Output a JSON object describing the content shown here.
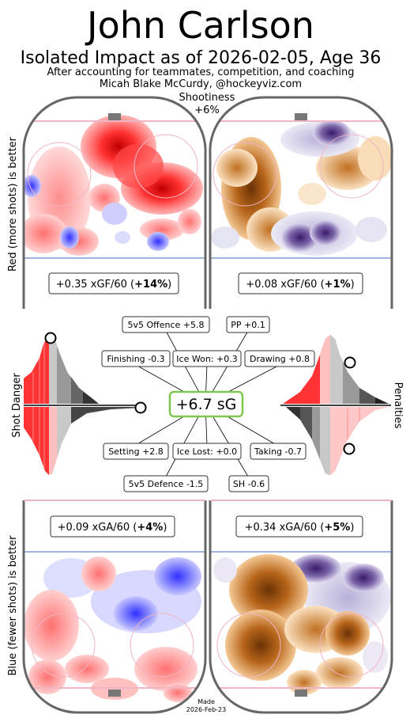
{
  "header": {
    "title": "John Carlson",
    "subtitle": "Isolated Impact as of 2026-02-05, Age 36",
    "line1": "After accounting for teammates, competition, and coaching",
    "line2": "Micah Blake McCurdy, @hockeyviz.com"
  },
  "shootiness": {
    "label": "Shootiness",
    "value": "+6%"
  },
  "side_labels": {
    "top": "Red (more shots) is better",
    "bottom": "Blue (fewer shots) is better",
    "left": "Shot Danger",
    "right": "Penalties"
  },
  "rink_labels": {
    "top_left": {
      "value": "+0.35 xGF/60 (",
      "pct": "+14%",
      "close": ")"
    },
    "top_right": {
      "value": "+0.08 xGF/60 (",
      "pct": "+1%",
      "close": ")"
    },
    "bottom_left": {
      "value": "+0.09 xGA/60 (",
      "pct": "+4%",
      "close": ")"
    },
    "bottom_right": {
      "value": "+0.34 xGA/60 (",
      "pct": "+5%",
      "close": ")"
    }
  },
  "center": {
    "total": "+6.7 sG"
  },
  "components": {
    "offence": "5v5 Offence +5.8",
    "pp": "PP +0.1",
    "finishing": "Finishing -0.3",
    "ice_won": "Ice Won: +0.3",
    "drawing": "Drawing +0.8",
    "setting": "Setting +2.8",
    "ice_lost": "Ice Lost: +0.0",
    "taking": "Taking -0.7",
    "defence": "5v5 Defence -1.5",
    "sh": "SH -0.6"
  },
  "footer": {
    "made": "Made",
    "date": "2026-Feb-23"
  },
  "colors": {
    "red": "#ff2a2a",
    "blue": "#3a3aff",
    "orange": "#d98a2a",
    "purple": "#4b2a7a",
    "green": "#7ec850"
  },
  "chart_data": {
    "type": "heatmap",
    "series": [
      {
        "name": "xGF/60",
        "values": [
          0.35,
          0.08
        ]
      },
      {
        "name": "xGA/60",
        "values": [
          0.09,
          0.34
        ]
      }
    ],
    "total_sG": 6.7,
    "shootiness_pct": 6
  }
}
